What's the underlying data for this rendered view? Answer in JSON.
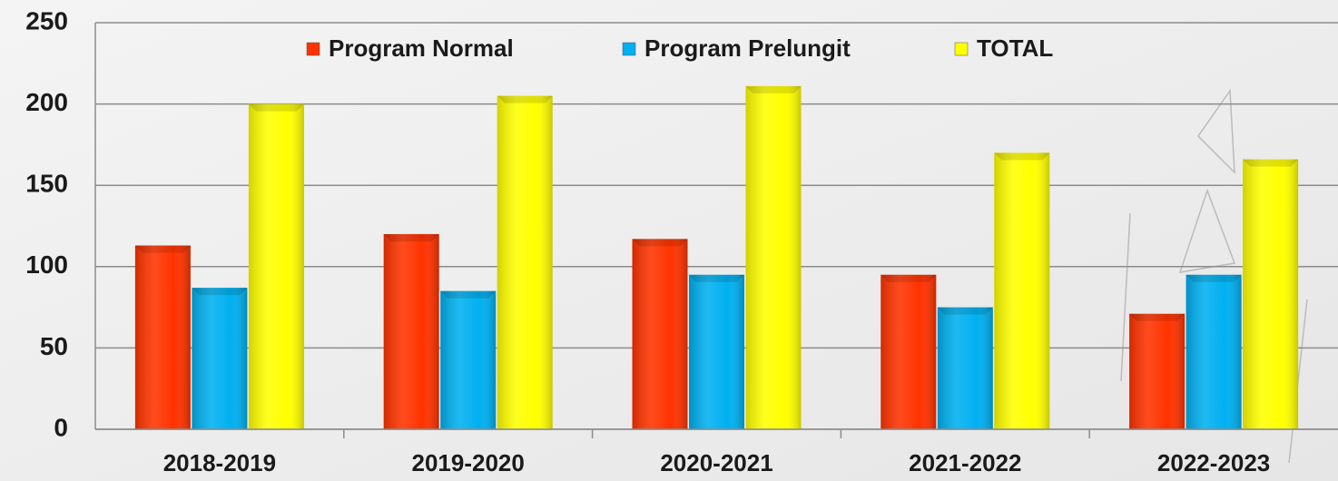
{
  "chart_data": {
    "type": "bar",
    "categories": [
      "2018-2019",
      "2019-2020",
      "2020-2021",
      "2021-2022",
      "2022-2023"
    ],
    "series": [
      {
        "name": "Program Normal",
        "color": "#ff3300",
        "values": [
          113,
          120,
          117,
          95,
          71
        ]
      },
      {
        "name": "Program Prelungit",
        "color": "#00b0f0",
        "values": [
          87,
          85,
          95,
          75,
          95
        ]
      },
      {
        "name": "TOTAL",
        "color": "#ffff00",
        "values": [
          200,
          205,
          211,
          170,
          166
        ]
      }
    ],
    "ylim": [
      0,
      250
    ],
    "yticks": [
      0,
      50,
      100,
      150,
      200,
      250
    ],
    "grid": true,
    "legend": "top"
  }
}
